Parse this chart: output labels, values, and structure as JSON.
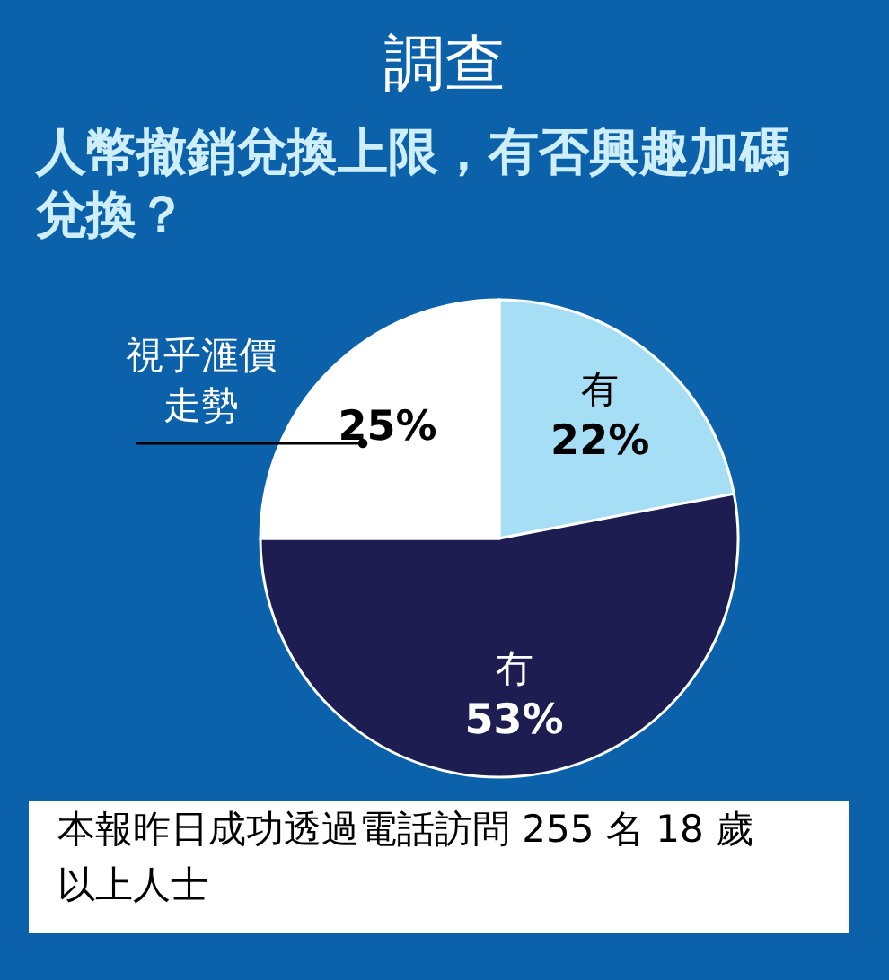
{
  "chart_data": {
    "type": "pie",
    "title": "調查",
    "subtitle": "人幣撤銷兌換上限，有否興趣加碼兌換？",
    "categories": [
      "有",
      "冇",
      "視乎滙價走勢"
    ],
    "values": [
      22,
      53,
      25
    ],
    "colors": [
      "#a6def5",
      "#1d1d52",
      "#ffffff"
    ],
    "value_labels": [
      "22%",
      "53%",
      "25%"
    ],
    "annotations": [
      "本報昨日成功透過電話訪問 255 名 18 歲以上人士"
    ]
  }
}
